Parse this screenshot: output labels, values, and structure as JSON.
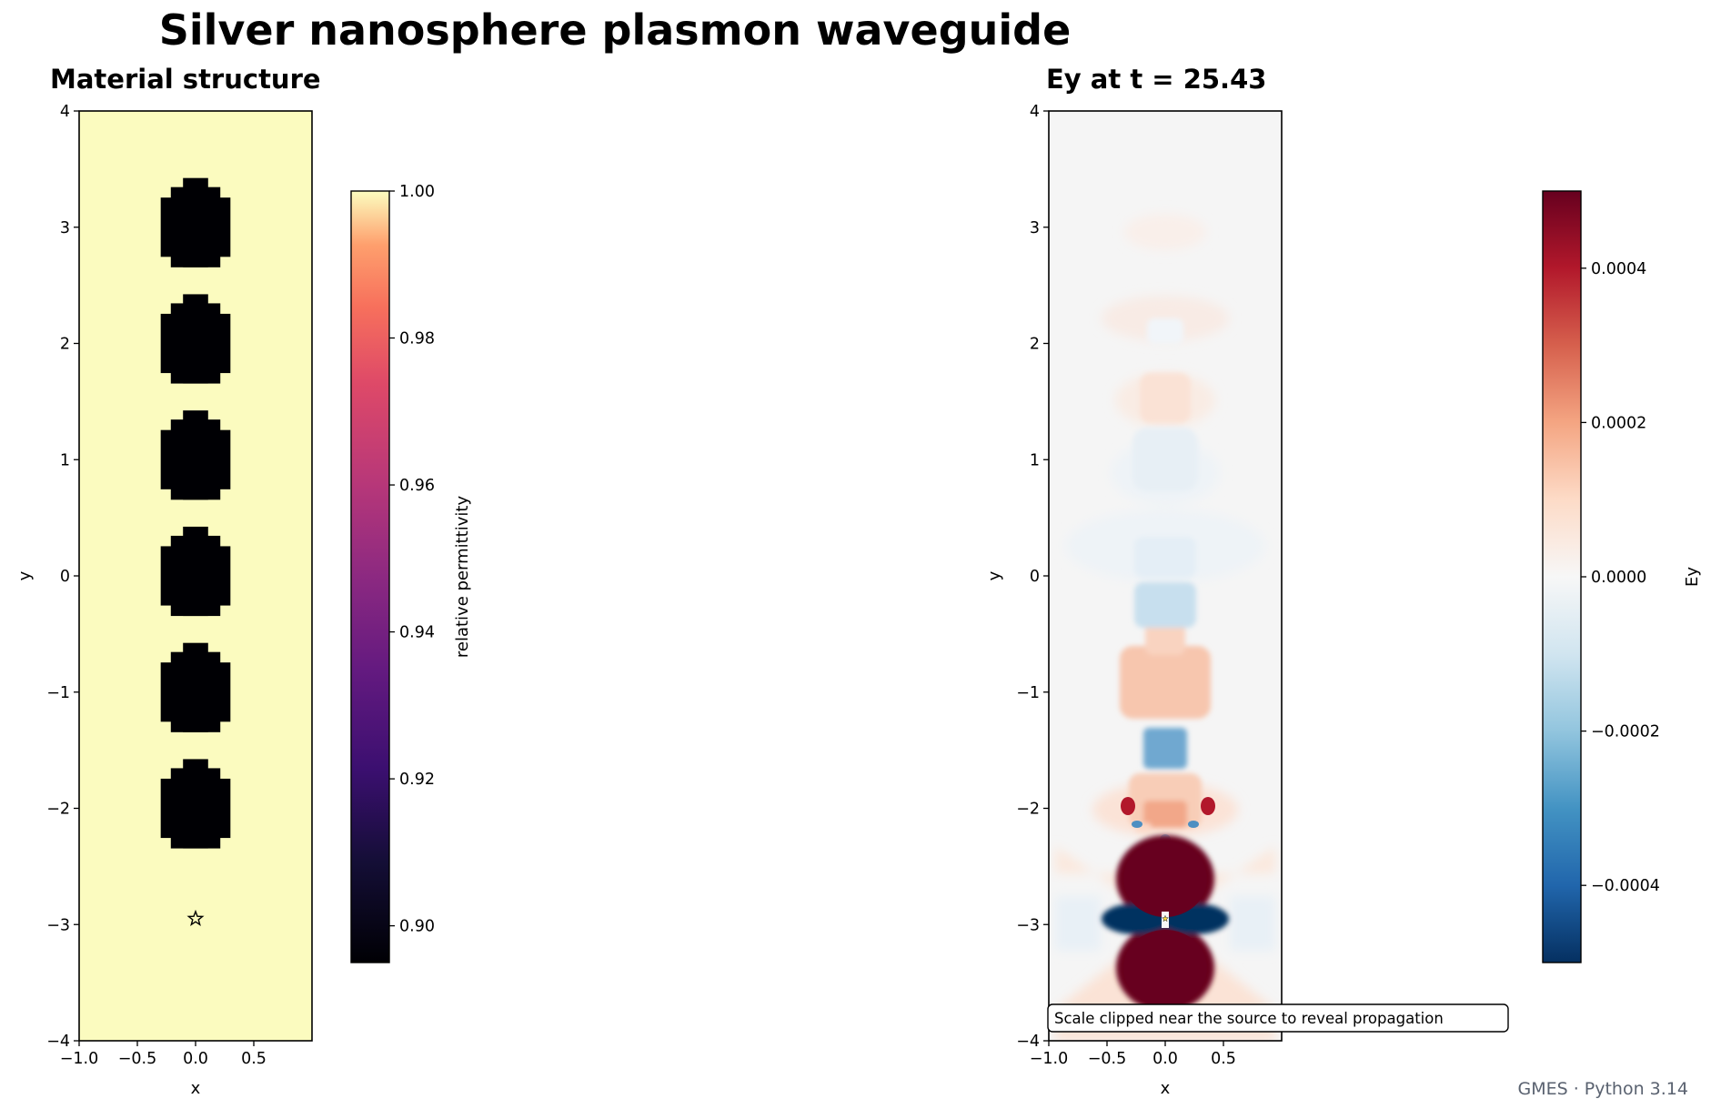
{
  "title": "Silver nanosphere plasmon waveguide",
  "footer": "GMES · Python 3.14",
  "colors": {
    "material_background": "#fbfbbf",
    "sphere": "#000004",
    "field_background": "#f5f5f5"
  },
  "chart_data": [
    {
      "type": "heatmap",
      "title": "Material structure",
      "xlabel": "x",
      "ylabel": "y",
      "xlim": [
        -1.0,
        1.0
      ],
      "ylim": [
        -4,
        4
      ],
      "xticks": [
        "−1.0",
        "−0.5",
        "0.0",
        "0.5"
      ],
      "yticks": [
        "−4",
        "−3",
        "−2",
        "−1",
        "0",
        "1",
        "2",
        "3",
        "4"
      ],
      "colormap": "magma",
      "colorbar": {
        "label": "relative permittivity",
        "range": [
          0.895,
          1.0
        ],
        "ticks": [
          "0.90",
          "0.92",
          "0.94",
          "0.96",
          "0.98",
          "1.00"
        ]
      },
      "background_value": 1.0,
      "spheres": [
        {
          "x": 0.0,
          "y": -2.0,
          "radius": 0.3
        },
        {
          "x": 0.0,
          "y": -1.0,
          "radius": 0.3
        },
        {
          "x": 0.0,
          "y": 0.0,
          "radius": 0.3
        },
        {
          "x": 0.0,
          "y": 1.0,
          "radius": 0.3
        },
        {
          "x": 0.0,
          "y": 2.0,
          "radius": 0.3
        },
        {
          "x": 0.0,
          "y": 3.0,
          "radius": 0.3
        }
      ],
      "source": {
        "x": 0.0,
        "y": -2.95,
        "marker": "star"
      }
    },
    {
      "type": "heatmap",
      "title": "Ey at t = 25.43",
      "xlabel": "x",
      "ylabel": "y",
      "xlim": [
        -1.0,
        1.0
      ],
      "ylim": [
        -4,
        4
      ],
      "xticks": [
        "−1.0",
        "−0.5",
        "0.0",
        "0.5"
      ],
      "yticks": [
        "−4",
        "−3",
        "−2",
        "−1",
        "0",
        "1",
        "2",
        "3",
        "4"
      ],
      "colormap": "RdBu_r",
      "colorbar": {
        "label": "Ey",
        "range": [
          -0.0005,
          0.0005
        ],
        "ticks": [
          "−0.0004",
          "−0.0002",
          "0.0000",
          "0.0002",
          "0.0004"
        ]
      },
      "annotation": "Scale clipped near the source to reveal propagation",
      "source": {
        "x": 0.0,
        "y": -2.95,
        "marker": "star"
      }
    }
  ]
}
